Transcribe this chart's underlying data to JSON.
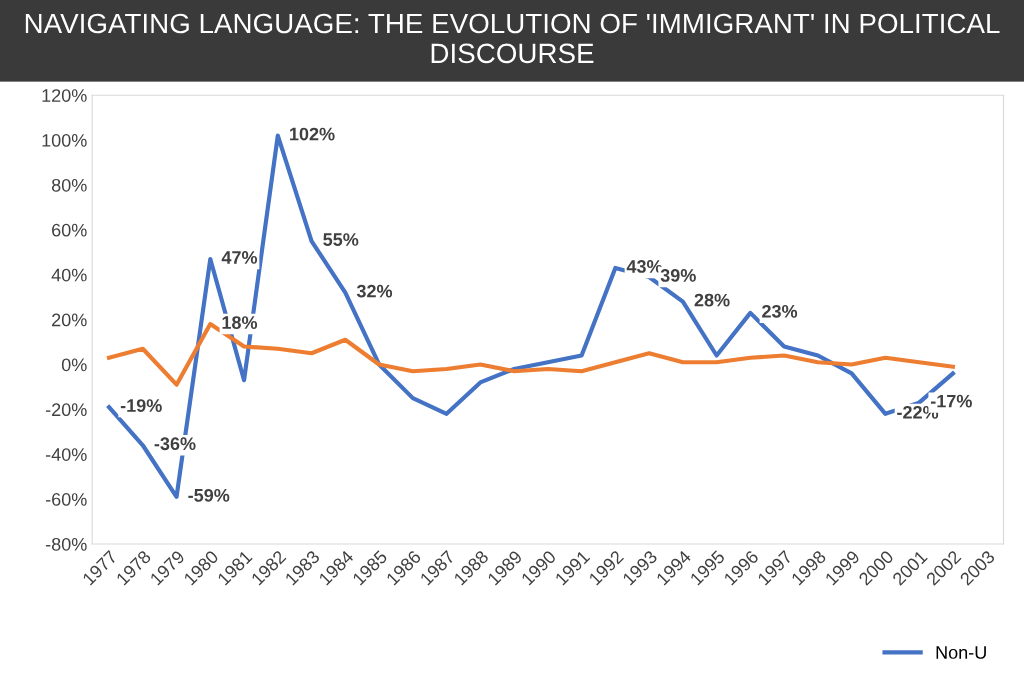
{
  "chart_data": {
    "type": "line",
    "title": "NAVIGATING LANGUAGE: THE EVOLUTION OF 'IMMIGRANT' IN POLITICAL DISCOURSE",
    "categories": [
      "1977",
      "1978",
      "1979",
      "1980",
      "1981",
      "1982",
      "1983",
      "1984",
      "1985",
      "1986",
      "1987",
      "1988",
      "1989",
      "1990",
      "1991",
      "1992",
      "1993",
      "1994",
      "1995",
      "1996",
      "1997",
      "1998",
      "1999",
      "2000",
      "2001",
      "2002",
      "2003"
    ],
    "series": [
      {
        "name": "Non-U",
        "color": "#4472c4",
        "values": [
          -19,
          -36,
          -59,
          47,
          -7,
          102,
          55,
          32,
          0,
          -15,
          -22,
          -8,
          -2,
          1,
          4,
          43,
          39,
          28,
          4,
          23,
          8,
          4,
          -4,
          -22,
          -17,
          -4,
          null
        ],
        "value_labels": [
          "-19%",
          "-36%",
          "-59%",
          "47%",
          null,
          "102%",
          "55%",
          "32%",
          null,
          null,
          null,
          null,
          null,
          null,
          null,
          "43%",
          "39%",
          "28%",
          null,
          "23%",
          null,
          null,
          null,
          "-22%",
          "-17%",
          null,
          null
        ]
      },
      {
        "color": "#ed7d31",
        "values": [
          3,
          7,
          -9,
          18,
          8,
          7,
          5,
          11,
          0,
          -3,
          -2,
          0,
          -3,
          -2,
          -3,
          1,
          5,
          1,
          1,
          3,
          4,
          1,
          0,
          3,
          1,
          -1,
          null
        ],
        "value_labels": [
          null,
          null,
          null,
          "18%",
          null,
          null,
          null,
          null,
          null,
          null,
          null,
          null,
          null,
          null,
          null,
          null,
          null,
          null,
          null,
          null,
          null,
          null,
          null,
          null,
          null,
          null,
          null
        ]
      }
    ],
    "ylim": [
      -80,
      120
    ],
    "yticks": [
      {
        "value": -80,
        "label": "-80%"
      },
      {
        "value": -60,
        "label": "-60%"
      },
      {
        "value": -40,
        "label": "-40%"
      },
      {
        "value": -20,
        "label": "-20%"
      },
      {
        "value": 0,
        "label": "0%"
      },
      {
        "value": 20,
        "label": "20%"
      },
      {
        "value": 40,
        "label": "40%"
      },
      {
        "value": 60,
        "label": "60%"
      },
      {
        "value": 80,
        "label": "80%"
      },
      {
        "value": 100,
        "label": "100%"
      },
      {
        "value": 120,
        "label": "120%"
      }
    ],
    "grid": false,
    "legend": "bottom right",
    "marker": "none",
    "line_style": "solid"
  }
}
